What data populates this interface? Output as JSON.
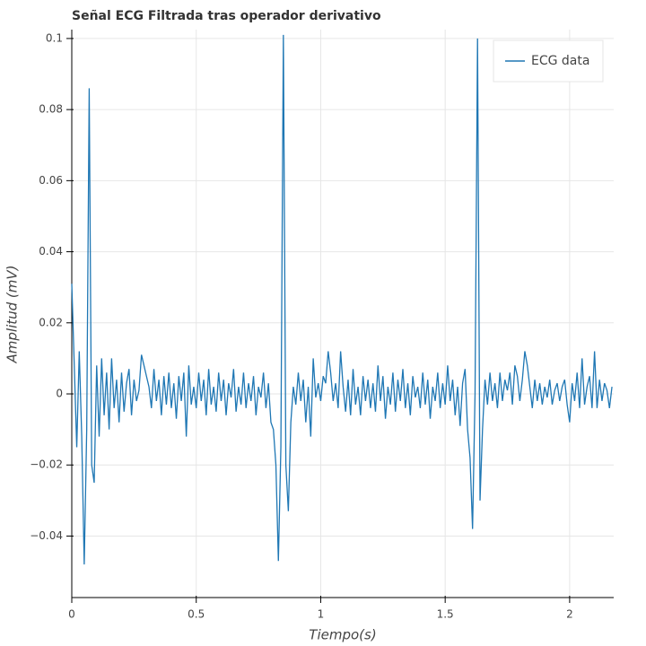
{
  "chart_data": {
    "type": "line",
    "title": "Señal ECG Filtrada tras operador derivativo",
    "x_label": "Tiempo(s)",
    "y_label": "Amplitud (mV)",
    "x": [
      0,
      0.01,
      0.02,
      0.03,
      0.04,
      0.05,
      0.06,
      0.07,
      0.08,
      0.09,
      0.1,
      0.11,
      0.12,
      0.13,
      0.14,
      0.15,
      0.16,
      0.17,
      0.18,
      0.19,
      0.2,
      0.21,
      0.22,
      0.23,
      0.24,
      0.25,
      0.26,
      0.27,
      0.28,
      0.29,
      0.3,
      0.31,
      0.32,
      0.33,
      0.34,
      0.35,
      0.36,
      0.37,
      0.38,
      0.39,
      0.4,
      0.41,
      0.42,
      0.43,
      0.44,
      0.45,
      0.46,
      0.47,
      0.48,
      0.49,
      0.5,
      0.51,
      0.52,
      0.53,
      0.54,
      0.55,
      0.56,
      0.57,
      0.58,
      0.59,
      0.6,
      0.61,
      0.62,
      0.63,
      0.64,
      0.65,
      0.66,
      0.67,
      0.68,
      0.69,
      0.7,
      0.71,
      0.72,
      0.73,
      0.74,
      0.75,
      0.76,
      0.77,
      0.78,
      0.79,
      0.8,
      0.81,
      0.82,
      0.83,
      0.84,
      0.85,
      0.86,
      0.87,
      0.88,
      0.89,
      0.9,
      0.91,
      0.92,
      0.93,
      0.94,
      0.95,
      0.96,
      0.97,
      0.98,
      0.99,
      1.0,
      1.01,
      1.02,
      1.03,
      1.04,
      1.05,
      1.06,
      1.07,
      1.08,
      1.09,
      1.1,
      1.11,
      1.12,
      1.13,
      1.14,
      1.15,
      1.16,
      1.17,
      1.18,
      1.19,
      1.2,
      1.21,
      1.22,
      1.23,
      1.24,
      1.25,
      1.26,
      1.27,
      1.28,
      1.29,
      1.3,
      1.31,
      1.32,
      1.33,
      1.34,
      1.35,
      1.36,
      1.37,
      1.38,
      1.39,
      1.4,
      1.41,
      1.42,
      1.43,
      1.44,
      1.45,
      1.46,
      1.47,
      1.48,
      1.49,
      1.5,
      1.51,
      1.52,
      1.53,
      1.54,
      1.55,
      1.56,
      1.57,
      1.58,
      1.59,
      1.6,
      1.61,
      1.62,
      1.63,
      1.64,
      1.65,
      1.66,
      1.67,
      1.68,
      1.69,
      1.7,
      1.71,
      1.72,
      1.73,
      1.74,
      1.75,
      1.76,
      1.77,
      1.78,
      1.79,
      1.8,
      1.81,
      1.82,
      1.83,
      1.84,
      1.85,
      1.86,
      1.87,
      1.88,
      1.89,
      1.9,
      1.91,
      1.92,
      1.93,
      1.94,
      1.95,
      1.96,
      1.97,
      1.98,
      1.99,
      2.0,
      2.01,
      2.02,
      2.03,
      2.04,
      2.05,
      2.06,
      2.07,
      2.08,
      2.09,
      2.1,
      2.11,
      2.12,
      2.13,
      2.14,
      2.15,
      2.16,
      2.17
    ],
    "series": [
      {
        "name": "ECG data",
        "color": "#1f77b4",
        "values": [
          0.031,
          0.008,
          -0.015,
          0.012,
          -0.012,
          -0.048,
          -0.01,
          0.086,
          -0.02,
          -0.025,
          0.008,
          -0.012,
          0.01,
          -0.006,
          0.006,
          -0.01,
          0.01,
          -0.004,
          0.004,
          -0.008,
          0.006,
          -0.005,
          0.003,
          0.007,
          -0.006,
          0.004,
          -0.002,
          0.001,
          0.011,
          0.008,
          0.005,
          0.002,
          -0.004,
          0.007,
          -0.002,
          0.004,
          -0.006,
          0.005,
          -0.003,
          0.006,
          -0.004,
          0.003,
          -0.007,
          0.005,
          -0.002,
          0.006,
          -0.012,
          0.008,
          -0.003,
          0.002,
          -0.004,
          0.006,
          -0.002,
          0.004,
          -0.006,
          0.007,
          -0.003,
          0.002,
          -0.005,
          0.006,
          -0.002,
          0.004,
          -0.006,
          0.003,
          -0.001,
          0.007,
          -0.005,
          0.002,
          -0.003,
          0.006,
          -0.004,
          0.003,
          -0.002,
          0.005,
          -0.006,
          0.002,
          -0.001,
          0.006,
          -0.004,
          0.003,
          -0.008,
          -0.01,
          -0.02,
          -0.047,
          -0.015,
          0.101,
          -0.02,
          -0.033,
          -0.008,
          0.002,
          -0.003,
          0.006,
          -0.002,
          0.004,
          -0.008,
          0.002,
          -0.012,
          0.01,
          -0.001,
          0.003,
          -0.002,
          0.005,
          0.003,
          0.012,
          0.006,
          -0.002,
          0.003,
          -0.004,
          0.012,
          0.002,
          -0.005,
          0.004,
          -0.006,
          0.007,
          -0.003,
          0.002,
          -0.006,
          0.005,
          -0.002,
          0.004,
          -0.004,
          0.003,
          -0.005,
          0.008,
          -0.002,
          0.005,
          -0.007,
          0.002,
          -0.003,
          0.006,
          -0.005,
          0.004,
          -0.002,
          0.007,
          -0.004,
          0.003,
          -0.006,
          0.005,
          -0.001,
          0.002,
          -0.004,
          0.006,
          -0.003,
          0.004,
          -0.007,
          0.002,
          -0.002,
          0.006,
          -0.004,
          0.003,
          -0.003,
          0.008,
          -0.002,
          0.004,
          -0.006,
          0.002,
          -0.009,
          0.003,
          0.007,
          -0.01,
          -0.018,
          -0.038,
          0.0,
          0.1,
          -0.03,
          -0.01,
          0.004,
          -0.003,
          0.006,
          -0.002,
          0.003,
          -0.004,
          0.006,
          -0.002,
          0.004,
          0.001,
          0.006,
          -0.003,
          0.008,
          0.005,
          -0.002,
          0.004,
          0.012,
          0.008,
          0.002,
          -0.004,
          0.004,
          -0.002,
          0.003,
          -0.003,
          0.002,
          -0.001,
          0.004,
          -0.003,
          0.001,
          0.003,
          -0.002,
          0.002,
          0.004,
          -0.003,
          -0.008,
          0.003,
          -0.002,
          0.006,
          -0.004,
          0.01,
          -0.003,
          0.002,
          0.005,
          -0.004,
          0.012,
          -0.004,
          0.004,
          -0.002,
          0.003,
          0.001,
          -0.004,
          0.002
        ]
      }
    ],
    "xlim": [
      0,
      2.177
    ],
    "ylim": [
      -0.0573,
      0.1025
    ],
    "xticks": [
      0,
      0.5,
      1,
      1.5,
      2
    ],
    "yticks": [
      0.1,
      0.08,
      0.06,
      0.04,
      0.02,
      0,
      {
        "value": -0.02,
        "label": "−0.02"
      },
      {
        "value": -0.04,
        "label": "−0.04"
      }
    ],
    "grid": true,
    "legend": "top-right"
  }
}
